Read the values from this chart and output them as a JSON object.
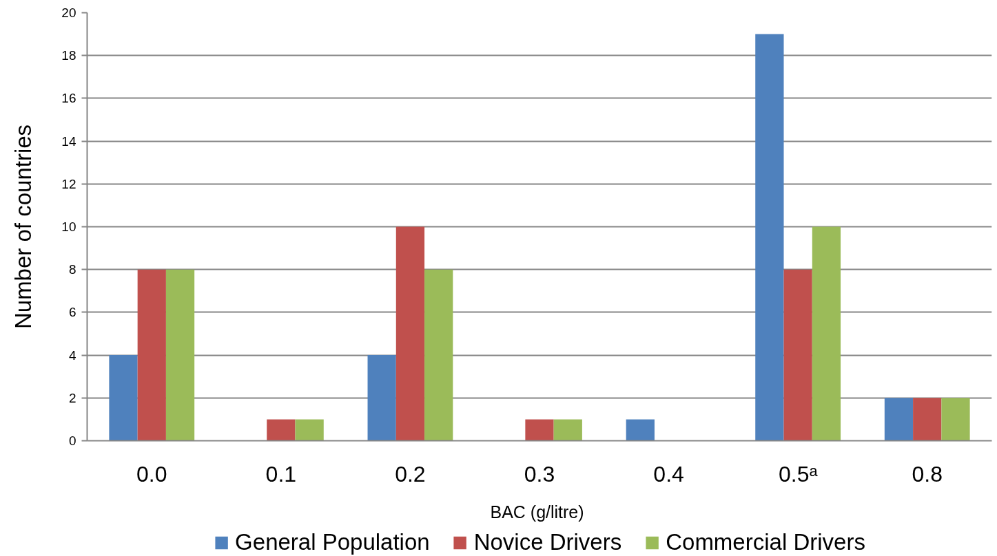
{
  "chart_data": {
    "type": "bar",
    "xlabel": "BAC  (g/litre)",
    "ylabel": "Number of countries",
    "categories": [
      "0.0",
      "0.1",
      "0.2",
      "0.3",
      "0.4",
      "0.5ᵃ",
      "0.8"
    ],
    "series": [
      {
        "name": "General Population",
        "color": "#4f81bd",
        "values": [
          4,
          0,
          4,
          0,
          1,
          19,
          2
        ]
      },
      {
        "name": "Novice Drivers",
        "color": "#c0504d",
        "values": [
          8,
          1,
          10,
          1,
          0,
          8,
          2
        ]
      },
      {
        "name": "Commercial Drivers",
        "color": "#9bbb59",
        "values": [
          8,
          1,
          8,
          1,
          0,
          10,
          2
        ]
      }
    ],
    "ylim": [
      0,
      20
    ],
    "yticks": [
      0,
      2,
      4,
      6,
      8,
      10,
      12,
      14,
      16,
      18,
      20
    ],
    "grid": "y",
    "legend": "bottom"
  }
}
